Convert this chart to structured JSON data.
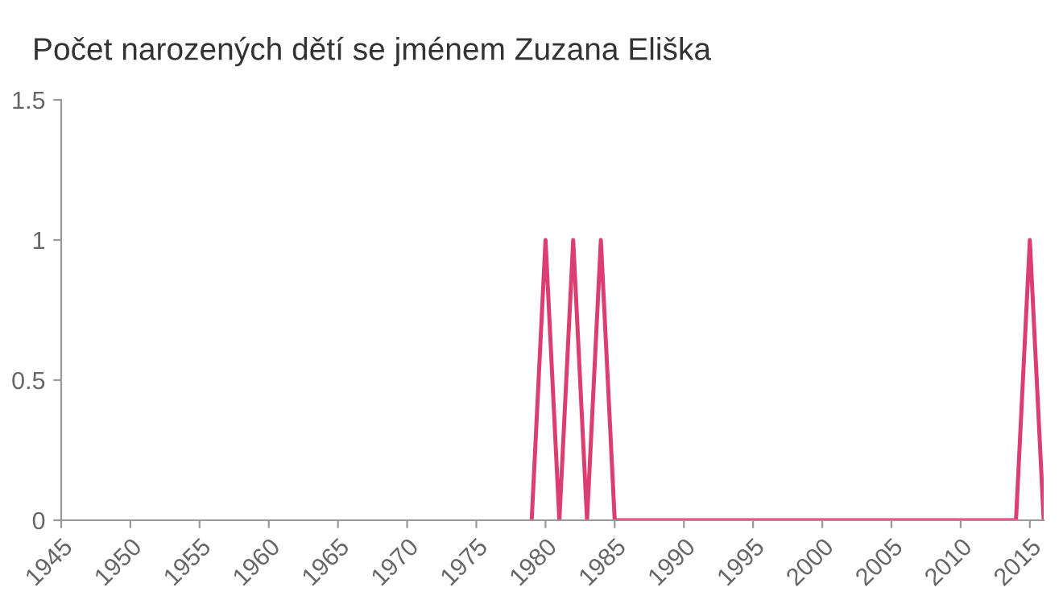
{
  "chart_data": {
    "type": "line",
    "title": "Počet narozených dětí se jménem Zuzana Eliška",
    "x": [
      1979,
      1980,
      1981,
      1982,
      1983,
      1984,
      1985,
      2014,
      2015,
      2016
    ],
    "series": [
      {
        "color": "#dc3e72",
        "values": [
          0,
          1,
          0,
          1,
          0,
          1,
          0,
          0,
          1,
          0
        ]
      }
    ],
    "xlim": [
      1945,
      2016
    ],
    "xticks": [
      1945,
      1950,
      1955,
      1960,
      1965,
      1970,
      1975,
      1980,
      1985,
      1990,
      1995,
      2000,
      2005,
      2010,
      2015
    ],
    "ylim": [
      0,
      1.5
    ],
    "yticks": [
      0,
      0.5,
      1,
      1.5
    ],
    "grid": false,
    "legend": false,
    "marker": "none",
    "line_style": "solid"
  }
}
